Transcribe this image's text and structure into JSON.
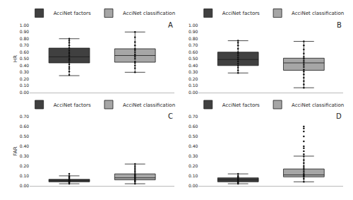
{
  "chart_data": [
    {
      "type": "box",
      "title": "A",
      "ylabel": "HR",
      "ylim": [
        0,
        1.0
      ],
      "yticks": [
        {
          "value": 0,
          "label": "0.00"
        },
        {
          "value": 0.1,
          "label": "0.10"
        },
        {
          "value": 0.2,
          "label": "0.20"
        },
        {
          "value": 0.3,
          "label": "0.30"
        },
        {
          "value": 0.4,
          "label": "0.40"
        },
        {
          "value": 0.5,
          "label": "0.50"
        },
        {
          "value": 0.6,
          "label": "0.60"
        },
        {
          "value": 0.7,
          "label": "0.70"
        },
        {
          "value": 0.8,
          "label": "0.80"
        },
        {
          "value": 0.9,
          "label": "0.90"
        },
        {
          "value": 1.0,
          "label": "1.00"
        }
      ],
      "legend": "top",
      "series": [
        {
          "name": "AcciNet factors",
          "color": "#404040",
          "lower": 0.25,
          "q1": 0.44,
          "median": 0.53,
          "q3": 0.66,
          "upper": 0.8,
          "points": [
            0.26,
            0.31,
            0.35,
            0.38,
            0.42,
            0.45,
            0.48,
            0.5,
            0.53,
            0.55,
            0.58,
            0.6,
            0.63,
            0.66,
            0.7,
            0.74,
            0.77,
            0.8
          ]
        },
        {
          "name": "AcciNet classification",
          "color": "#a6a6a6",
          "lower": 0.3,
          "q1": 0.45,
          "median": 0.55,
          "q3": 0.65,
          "upper": 0.9,
          "points": [
            0.3,
            0.36,
            0.4,
            0.44,
            0.46,
            0.5,
            0.53,
            0.55,
            0.57,
            0.6,
            0.63,
            0.65,
            0.7,
            0.75,
            0.82,
            0.9
          ]
        }
      ]
    },
    {
      "type": "box",
      "title": "B",
      "ylim": [
        0,
        1.0
      ],
      "yticks": [
        {
          "value": 0,
          "label": "0.00"
        },
        {
          "value": 0.1,
          "label": "0.10"
        },
        {
          "value": 0.2,
          "label": "0.20"
        },
        {
          "value": 0.3,
          "label": "0.30"
        },
        {
          "value": 0.4,
          "label": "0.40"
        },
        {
          "value": 0.5,
          "label": "0.50"
        },
        {
          "value": 0.6,
          "label": "0.60"
        },
        {
          "value": 0.7,
          "label": "0.70"
        },
        {
          "value": 0.8,
          "label": "0.80"
        },
        {
          "value": 0.9,
          "label": "0.90"
        },
        {
          "value": 1.0,
          "label": "1.00"
        }
      ],
      "legend": "top",
      "series": [
        {
          "name": "AcciNet factors",
          "color": "#404040",
          "lower": 0.29,
          "q1": 0.4,
          "median": 0.49,
          "q3": 0.6,
          "upper": 0.77,
          "points": [
            0.29,
            0.33,
            0.37,
            0.4,
            0.43,
            0.46,
            0.49,
            0.52,
            0.55,
            0.58,
            0.6,
            0.65,
            0.7,
            0.74,
            0.77
          ]
        },
        {
          "name": "AcciNet classification",
          "color": "#a6a6a6",
          "lower": 0.07,
          "q1": 0.33,
          "median": 0.44,
          "q3": 0.51,
          "upper": 0.76,
          "points": [
            0.07,
            0.12,
            0.17,
            0.22,
            0.27,
            0.31,
            0.34,
            0.38,
            0.41,
            0.44,
            0.47,
            0.5,
            0.53,
            0.58,
            0.64,
            0.7,
            0.76
          ]
        }
      ]
    },
    {
      "type": "box",
      "title": "C",
      "ylabel": "FAR",
      "ylim": [
        0,
        0.7
      ],
      "yticks": [
        {
          "value": 0,
          "label": "0.00"
        },
        {
          "value": 0.1,
          "label": "0.10"
        },
        {
          "value": 0.2,
          "label": "0.20"
        },
        {
          "value": 0.3,
          "label": "0.30"
        },
        {
          "value": 0.4,
          "label": "0.40"
        },
        {
          "value": 0.5,
          "label": "0.50"
        },
        {
          "value": 0.6,
          "label": "0.60"
        },
        {
          "value": 0.7,
          "label": "0.70"
        }
      ],
      "legend": "top",
      "series": [
        {
          "name": "AcciNet factors",
          "color": "#404040",
          "lower": 0.02,
          "q1": 0.04,
          "median": 0.05,
          "q3": 0.065,
          "upper": 0.1,
          "points": [
            0.02,
            0.03,
            0.04,
            0.045,
            0.05,
            0.055,
            0.06,
            0.065,
            0.07,
            0.08,
            0.09,
            0.1,
            0.12
          ]
        },
        {
          "name": "AcciNet classification",
          "color": "#a6a6a6",
          "lower": 0.02,
          "q1": 0.06,
          "median": 0.08,
          "q3": 0.12,
          "upper": 0.22,
          "points": [
            0.02,
            0.04,
            0.05,
            0.06,
            0.07,
            0.08,
            0.09,
            0.1,
            0.11,
            0.12,
            0.14,
            0.16,
            0.18,
            0.2,
            0.22
          ]
        }
      ]
    },
    {
      "type": "box",
      "title": "D",
      "ylim": [
        0,
        0.7
      ],
      "yticks": [
        {
          "value": 0,
          "label": "0.00"
        },
        {
          "value": 0.1,
          "label": "0.10"
        },
        {
          "value": 0.2,
          "label": "0.20"
        },
        {
          "value": 0.3,
          "label": "0.30"
        },
        {
          "value": 0.4,
          "label": "0.40"
        },
        {
          "value": 0.5,
          "label": "0.50"
        },
        {
          "value": 0.6,
          "label": "0.60"
        },
        {
          "value": 0.7,
          "label": "0.70"
        }
      ],
      "legend": "top",
      "series": [
        {
          "name": "AcciNet factors",
          "color": "#404040",
          "lower": 0.02,
          "q1": 0.04,
          "median": 0.06,
          "q3": 0.08,
          "upper": 0.12,
          "points": [
            0.02,
            0.03,
            0.04,
            0.05,
            0.06,
            0.07,
            0.08,
            0.09,
            0.1,
            0.12
          ]
        },
        {
          "name": "AcciNet classification",
          "color": "#a6a6a6",
          "lower": 0.04,
          "q1": 0.09,
          "median": 0.11,
          "q3": 0.17,
          "upper": 0.3,
          "points": [
            0.04,
            0.07,
            0.09,
            0.1,
            0.11,
            0.12,
            0.14,
            0.16,
            0.18,
            0.2,
            0.23,
            0.26,
            0.3,
            0.32,
            0.35,
            0.38,
            0.4,
            0.45,
            0.5,
            0.55,
            0.58,
            0.6
          ]
        }
      ]
    }
  ]
}
